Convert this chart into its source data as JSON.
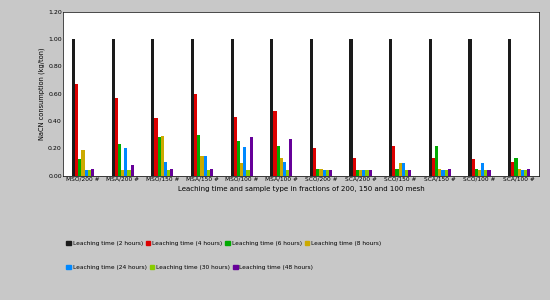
{
  "categories": [
    "MSO/200 #",
    "MSA/200 #",
    "MSO/150 #",
    "MSA/150 #",
    "MSO/100 #",
    "MSA/100 #",
    "SCO/200 #",
    "SCA/200 #",
    "SCO/150 #",
    "SCA/150 #",
    "SCO/100 #",
    "SCA/100 #"
  ],
  "series": [
    {
      "label": "Leaching time (2 hours)",
      "color": "#1a1a1a",
      "values": [
        1.0,
        1.0,
        1.0,
        1.0,
        1.0,
        1.0,
        1.0,
        1.0,
        1.0,
        1.0,
        1.0,
        1.0
      ]
    },
    {
      "label": "Leaching time (4 hours)",
      "color": "#dd0000",
      "values": [
        0.67,
        0.57,
        0.42,
        0.6,
        0.43,
        0.47,
        0.2,
        0.13,
        0.22,
        0.13,
        0.12,
        0.1
      ]
    },
    {
      "label": "Leaching time (6 hours)",
      "color": "#00aa00",
      "values": [
        0.12,
        0.23,
        0.28,
        0.3,
        0.25,
        0.22,
        0.05,
        0.04,
        0.05,
        0.22,
        0.05,
        0.13
      ]
    },
    {
      "label": "Leaching time (8 hours)",
      "color": "#ccaa00",
      "values": [
        0.19,
        0.04,
        0.29,
        0.14,
        0.09,
        0.13,
        0.05,
        0.04,
        0.09,
        0.05,
        0.04,
        0.05
      ]
    },
    {
      "label": "Leaching time (24 hours)",
      "color": "#0088ff",
      "values": [
        0.04,
        0.2,
        0.1,
        0.14,
        0.21,
        0.1,
        0.04,
        0.04,
        0.09,
        0.04,
        0.09,
        0.04
      ]
    },
    {
      "label": "Leaching time (30 hours)",
      "color": "#88cc00",
      "values": [
        0.04,
        0.04,
        0.04,
        0.04,
        0.04,
        0.04,
        0.04,
        0.04,
        0.04,
        0.04,
        0.04,
        0.04
      ]
    },
    {
      "label": "Leaching time (48 hours)",
      "color": "#660099",
      "values": [
        0.05,
        0.08,
        0.05,
        0.05,
        0.28,
        0.27,
        0.04,
        0.04,
        0.04,
        0.05,
        0.04,
        0.05
      ]
    }
  ],
  "ylabel": "NaCN consumption (kg/ton)",
  "xlabel": "Leaching time and sample type in fractions of 200, 150 and 100 mesh",
  "ylim": [
    0.0,
    1.2
  ],
  "yticks": [
    0.0,
    0.2,
    0.4,
    0.6,
    0.8,
    1.0,
    1.2
  ],
  "background": "#ffffff",
  "figure_bg": "#c8c8c8",
  "bar_width": 0.08
}
